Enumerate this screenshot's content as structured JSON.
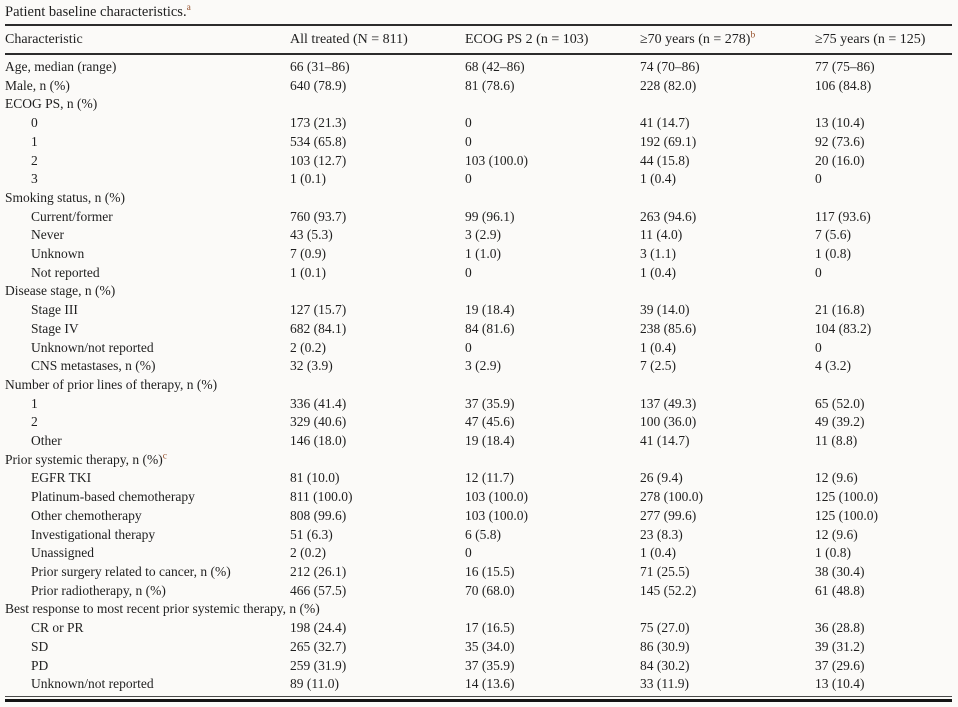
{
  "title": {
    "text": "Patient baseline characteristics.",
    "superscript": "a"
  },
  "table": {
    "columns": [
      {
        "label": "Characteristic",
        "superscript": ""
      },
      {
        "label": "All treated (N = 811)",
        "superscript": ""
      },
      {
        "label": "ECOG PS 2 (n = 103)",
        "superscript": ""
      },
      {
        "label": "≥70 years (n = 278)",
        "superscript": "b"
      },
      {
        "label": "≥75 years (n = 125)",
        "superscript": ""
      }
    ],
    "rows": [
      {
        "label": "Age, median (range)",
        "indent": 0,
        "sup": "",
        "values": [
          "66 (31–86)",
          "68 (42–86)",
          "74 (70–86)",
          "77 (75–86)"
        ]
      },
      {
        "label": "Male, n (%)",
        "indent": 0,
        "sup": "",
        "values": [
          "640 (78.9)",
          "81 (78.6)",
          "228 (82.0)",
          "106 (84.8)"
        ]
      },
      {
        "label": "ECOG PS, n (%)",
        "indent": 0,
        "sup": "",
        "values": [
          "",
          "",
          "",
          ""
        ]
      },
      {
        "label": "0",
        "indent": 1,
        "sup": "",
        "values": [
          "173 (21.3)",
          "0",
          "41 (14.7)",
          "13 (10.4)"
        ]
      },
      {
        "label": "1",
        "indent": 1,
        "sup": "",
        "values": [
          "534 (65.8)",
          "0",
          "192 (69.1)",
          "92 (73.6)"
        ]
      },
      {
        "label": "2",
        "indent": 1,
        "sup": "",
        "values": [
          "103 (12.7)",
          "103 (100.0)",
          "44 (15.8)",
          "20 (16.0)"
        ]
      },
      {
        "label": "3",
        "indent": 1,
        "sup": "",
        "values": [
          "1 (0.1)",
          "0",
          "1 (0.4)",
          "0"
        ]
      },
      {
        "label": "Smoking status, n (%)",
        "indent": 0,
        "sup": "",
        "values": [
          "",
          "",
          "",
          ""
        ]
      },
      {
        "label": "Current/former",
        "indent": 1,
        "sup": "",
        "values": [
          "760 (93.7)",
          "99 (96.1)",
          "263 (94.6)",
          "117 (93.6)"
        ]
      },
      {
        "label": "Never",
        "indent": 1,
        "sup": "",
        "values": [
          "43 (5.3)",
          "3 (2.9)",
          "11 (4.0)",
          "7 (5.6)"
        ]
      },
      {
        "label": "Unknown",
        "indent": 1,
        "sup": "",
        "values": [
          "7 (0.9)",
          "1 (1.0)",
          "3 (1.1)",
          "1 (0.8)"
        ]
      },
      {
        "label": "Not reported",
        "indent": 1,
        "sup": "",
        "values": [
          "1 (0.1)",
          "0",
          "1 (0.4)",
          "0"
        ]
      },
      {
        "label": "Disease stage, n (%)",
        "indent": 0,
        "sup": "",
        "values": [
          "",
          "",
          "",
          ""
        ]
      },
      {
        "label": "Stage III",
        "indent": 1,
        "sup": "",
        "values": [
          "127 (15.7)",
          "19 (18.4)",
          "39 (14.0)",
          "21 (16.8)"
        ]
      },
      {
        "label": "Stage IV",
        "indent": 1,
        "sup": "",
        "values": [
          "682 (84.1)",
          "84 (81.6)",
          "238 (85.6)",
          "104 (83.2)"
        ]
      },
      {
        "label": "Unknown/not reported",
        "indent": 1,
        "sup": "",
        "values": [
          "2 (0.2)",
          "0",
          "1 (0.4)",
          "0"
        ]
      },
      {
        "label": "CNS metastases, n (%)",
        "indent": 1,
        "sup": "",
        "values": [
          "32 (3.9)",
          "3 (2.9)",
          "7 (2.5)",
          "4 (3.2)"
        ]
      },
      {
        "label": "Number of prior lines of therapy, n (%)",
        "indent": 0,
        "sup": "",
        "values": [
          "",
          "",
          "",
          ""
        ]
      },
      {
        "label": "1",
        "indent": 1,
        "sup": "",
        "values": [
          "336 (41.4)",
          "37 (35.9)",
          "137 (49.3)",
          "65 (52.0)"
        ]
      },
      {
        "label": "2",
        "indent": 1,
        "sup": "",
        "values": [
          "329 (40.6)",
          "47 (45.6)",
          "100 (36.0)",
          "49 (39.2)"
        ]
      },
      {
        "label": "Other",
        "indent": 1,
        "sup": "",
        "values": [
          "146 (18.0)",
          "19 (18.4)",
          "41 (14.7)",
          "11 (8.8)"
        ]
      },
      {
        "label": "Prior systemic therapy, n (%)",
        "indent": 0,
        "sup": "c",
        "values": [
          "",
          "",
          "",
          ""
        ]
      },
      {
        "label": "EGFR TKI",
        "indent": 1,
        "sup": "",
        "values": [
          "81 (10.0)",
          "12 (11.7)",
          "26 (9.4)",
          "12 (9.6)"
        ]
      },
      {
        "label": "Platinum-based chemotherapy",
        "indent": 1,
        "sup": "",
        "values": [
          "811 (100.0)",
          "103 (100.0)",
          "278 (100.0)",
          "125 (100.0)"
        ]
      },
      {
        "label": "Other chemotherapy",
        "indent": 1,
        "sup": "",
        "values": [
          "808 (99.6)",
          "103 (100.0)",
          "277 (99.6)",
          "125 (100.0)"
        ]
      },
      {
        "label": "Investigational therapy",
        "indent": 1,
        "sup": "",
        "values": [
          "51 (6.3)",
          "6 (5.8)",
          "23 (8.3)",
          "12 (9.6)"
        ]
      },
      {
        "label": "Unassigned",
        "indent": 1,
        "sup": "",
        "values": [
          "2 (0.2)",
          "0",
          "1 (0.4)",
          "1 (0.8)"
        ]
      },
      {
        "label": "Prior surgery related to cancer, n (%)",
        "indent": 1,
        "sup": "",
        "values": [
          "212 (26.1)",
          "16 (15.5)",
          "71 (25.5)",
          "38 (30.4)"
        ]
      },
      {
        "label": "Prior radiotherapy, n (%)",
        "indent": 1,
        "sup": "",
        "values": [
          "466 (57.5)",
          "70 (68.0)",
          "145 (52.2)",
          "61 (48.8)"
        ]
      },
      {
        "label": "Best response to most recent prior systemic therapy, n (%)",
        "indent": 0,
        "sup": "",
        "values": [
          "",
          "",
          "",
          ""
        ]
      },
      {
        "label": "CR or PR",
        "indent": 1,
        "sup": "",
        "values": [
          "198 (24.4)",
          "17 (16.5)",
          "75 (27.0)",
          "36 (28.8)"
        ]
      },
      {
        "label": "SD",
        "indent": 1,
        "sup": "",
        "values": [
          "265 (32.7)",
          "35 (34.0)",
          "86 (30.9)",
          "39 (31.2)"
        ]
      },
      {
        "label": "PD",
        "indent": 1,
        "sup": "",
        "values": [
          "259 (31.9)",
          "37 (35.9)",
          "84 (30.2)",
          "37 (29.6)"
        ]
      },
      {
        "label": "Unknown/not reported",
        "indent": 1,
        "sup": "",
        "values": [
          "89 (11.0)",
          "14 (13.6)",
          "33 (11.9)",
          "13 (10.4)"
        ]
      }
    ]
  }
}
